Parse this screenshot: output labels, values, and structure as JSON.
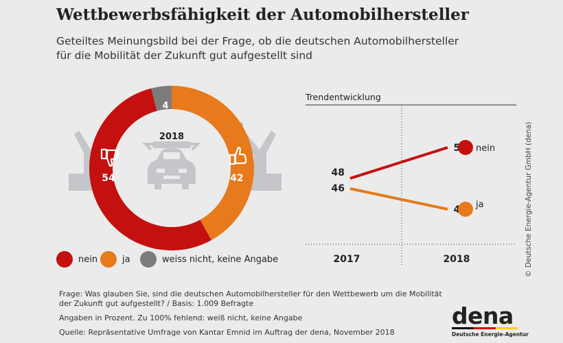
{
  "header": {
    "title": "Wettbewerbsfähigkeit der Automobilhersteller",
    "subtitle_line1": "Geteiltes Meinungsbild bei der Frage, ob die deutschen Automobilhersteller",
    "subtitle_line2": "für die Mobilität der Zukunft gut aufgestellt sind"
  },
  "colors": {
    "nein": "#c4100f",
    "ja": "#e67a1c",
    "weiss_nicht": "#7c7c7c",
    "background": "#ebebeb"
  },
  "chart_data": [
    {
      "type": "pie",
      "center_label": "2018",
      "slices": [
        {
          "label": "nein",
          "value": 54,
          "value_label": "54",
          "color": "#c4100f"
        },
        {
          "label": "ja",
          "value": 42,
          "value_label": "42",
          "color": "#e67a1c"
        },
        {
          "label": "weiss nicht, keine Angabe",
          "value": 4,
          "value_label": "4",
          "color": "#7c7c7c"
        }
      ],
      "icons": [
        "thumbs-down-icon",
        "thumbs-up-icon",
        "car-icon",
        "robot-arm-icon"
      ]
    },
    {
      "type": "line",
      "title": "Trendentwicklung",
      "categories": [
        "2017",
        "2018"
      ],
      "series": [
        {
          "name": "nein",
          "values": [
            48,
            54
          ],
          "value_labels": [
            "48",
            "54"
          ],
          "color": "#c4100f"
        },
        {
          "name": "ja",
          "values": [
            46,
            42
          ],
          "value_labels": [
            "46",
            "42"
          ],
          "color": "#e67a1c"
        }
      ],
      "ylim": [
        36,
        60
      ]
    }
  ],
  "legend": [
    {
      "label": "nein",
      "color": "#c4100f"
    },
    {
      "label": "ja",
      "color": "#e67a1c"
    },
    {
      "label": "weiss nicht, keine Angabe",
      "color": "#7c7c7c"
    }
  ],
  "footer": {
    "question_line1": "Frage: Was glauben Sie, sind die deutschen Automobilhersteller für den Wettbewerb um die Mobilität",
    "question_line2": "der Zukunft gut aufgestellt? / Basis: 1.009 Befragte",
    "note": "Angaben in Prozent. Zu 100% fehlend: weiß nicht, keine Angabe",
    "source": "Quelle: Repräsentative Umfrage von Kantar Emnid im Auftrag der dena, November 2018"
  },
  "credit": "© Deutsche Energie-Agentur GmbH (dena)",
  "logo": {
    "word": "dena",
    "subtitle": "Deutsche Energie-Agentur"
  }
}
